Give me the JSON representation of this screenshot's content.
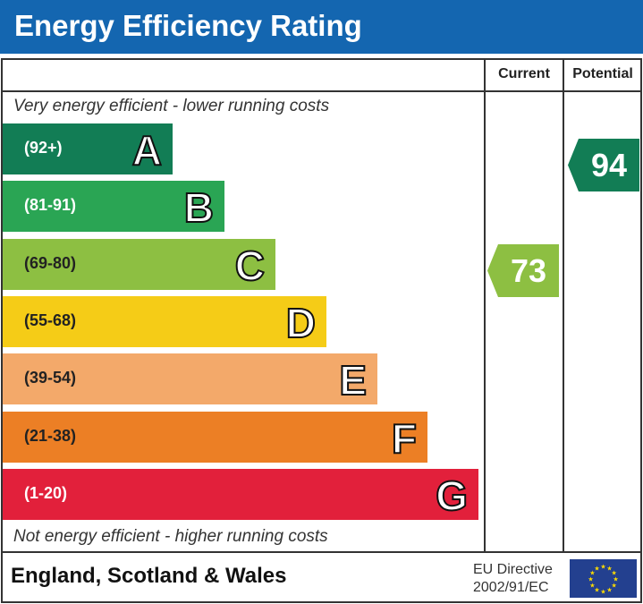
{
  "title": "Energy Efficiency Rating",
  "columns": {
    "current": "Current",
    "potential": "Potential"
  },
  "top_note": "Very energy efficient - lower running costs",
  "bottom_note": "Not energy efficient - higher running costs",
  "chart_data": {
    "type": "bar",
    "bands": [
      {
        "letter": "A",
        "range": "(92+)",
        "color": "#127d55"
      },
      {
        "letter": "B",
        "range": "(81-91)",
        "color": "#2aa554"
      },
      {
        "letter": "C",
        "range": "(69-80)",
        "color": "#8dbf42"
      },
      {
        "letter": "D",
        "range": "(55-68)",
        "color": "#f5cc17"
      },
      {
        "letter": "E",
        "range": "(39-54)",
        "color": "#f3a96a"
      },
      {
        "letter": "F",
        "range": "(21-38)",
        "color": "#ec7f25"
      },
      {
        "letter": "G",
        "range": "(1-20)",
        "color": "#e2203b"
      }
    ],
    "current": {
      "value": "73",
      "band": "C",
      "color": "#8dbf42"
    },
    "potential": {
      "value": "94",
      "band": "A",
      "color": "#127d55"
    }
  },
  "footer": {
    "region": "England, Scotland & Wales",
    "directive_line1": "EU Directive",
    "directive_line2": "2002/91/EC"
  },
  "colors": {
    "title_bar": "#1466b0",
    "eu_flag": "#23408f",
    "eu_stars": "#ffdd00"
  }
}
